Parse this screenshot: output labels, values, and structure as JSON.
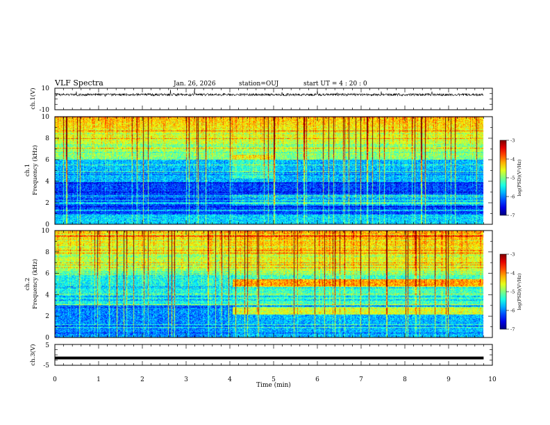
{
  "header": {
    "title": "VLF Spectra",
    "date": "Jan. 26, 2026",
    "station": "station=OUJ",
    "start": "start  UT =   4 : 20 : 0"
  },
  "chart_data": [
    {
      "type": "line",
      "id": "ch1-waveform",
      "ylabel": "ch.1(V)",
      "ylim": [
        -10,
        10
      ],
      "yticklabels": [
        "10",
        "-10"
      ],
      "xlim": [
        0,
        10
      ],
      "baseline_v": 4,
      "duration_min": 9.8
    },
    {
      "type": "heatmap",
      "id": "ch1-spectrogram",
      "ylabel": "ch.1\nFrequency  (kHz)",
      "ylim": [
        0,
        10
      ],
      "yticks": [
        "0",
        "2",
        "4",
        "6",
        "8",
        "10"
      ],
      "xlim": [
        0,
        10
      ],
      "colorbar": {
        "label": "log(PSD)(V²/Hz)",
        "range": [
          -7,
          -3
        ],
        "ticks": [
          "-3",
          "-4",
          "-5",
          "-6",
          "-7"
        ]
      }
    },
    {
      "type": "heatmap",
      "id": "ch2-spectrogram",
      "ylabel": "ch.2\nFrequency  (kHz)",
      "ylim": [
        0,
        10
      ],
      "yticks": [
        "0",
        "2",
        "4",
        "6",
        "8",
        "10"
      ],
      "xlim": [
        0,
        10
      ],
      "colorbar": {
        "label": "log(PSD)(V²/Hz)",
        "range": [
          -7,
          -3
        ],
        "ticks": [
          "-3",
          "-4",
          "-5",
          "-6",
          "-7"
        ]
      }
    },
    {
      "type": "line",
      "id": "ch3-signal",
      "ylabel": "ch.3(V)",
      "ylim": [
        -5,
        5
      ],
      "yticklabels": [
        "5",
        "-5"
      ],
      "level_v": -1.5,
      "xlim": [
        0,
        10
      ],
      "xlabel": "Time  (min)",
      "xticks": [
        "0",
        "1",
        "2",
        "3",
        "4",
        "5",
        "6",
        "7",
        "8",
        "9",
        "10"
      ]
    }
  ]
}
